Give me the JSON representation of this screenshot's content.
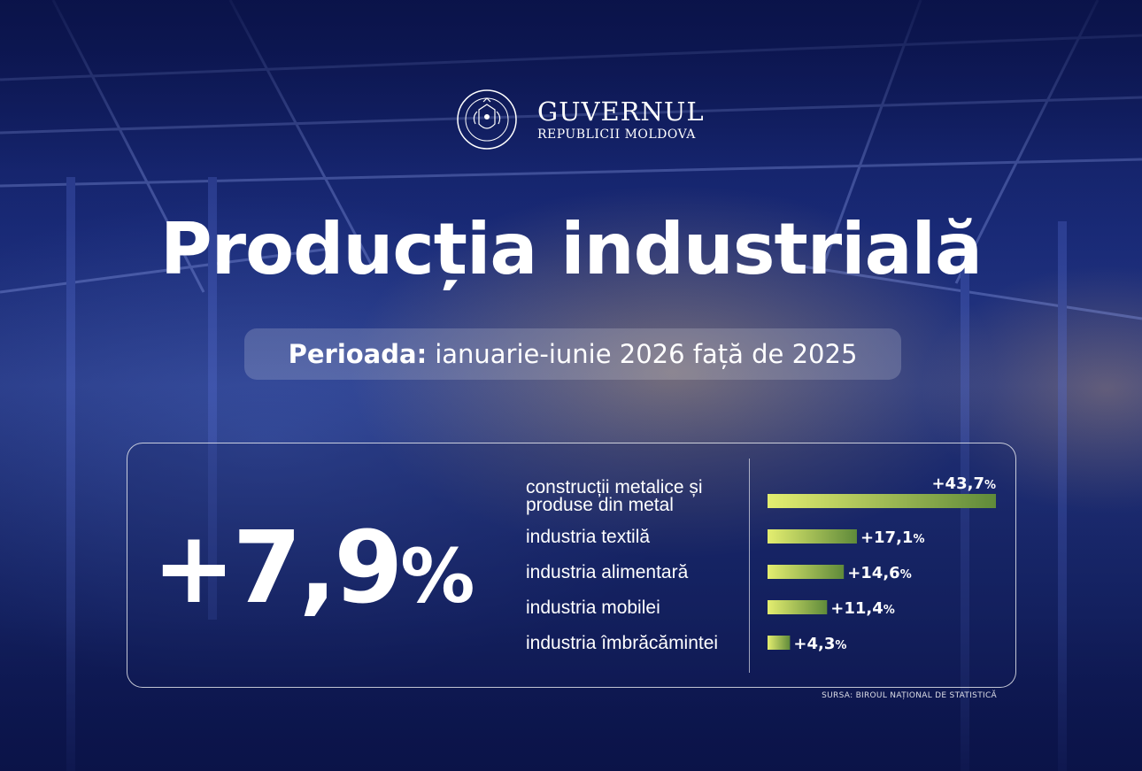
{
  "logo": {
    "line1": "GUVERNUL",
    "line2": "REPUBLICII MOLDOVA"
  },
  "title": "Producția industrială",
  "period": {
    "label": "Perioada:",
    "value": "ianuarie-iunie 2026 față de 2025"
  },
  "headline": {
    "value": "+7,9",
    "unit": "%"
  },
  "source": "SURSA: BIROUL NAȚIONAL DE STATISTICĂ",
  "colors": {
    "bar_start": "#e4ee70",
    "bar_end": "#5f8a3a",
    "background": "#1b2d7d"
  },
  "chart_data": {
    "type": "bar",
    "orientation": "horizontal",
    "categories": [
      [
        "construcții metalice și",
        "produse din metal"
      ],
      [
        "industria textilă"
      ],
      [
        "industria alimentară"
      ],
      [
        "industria mobilei"
      ],
      [
        "industria îmbrăcămintei"
      ]
    ],
    "values": [
      43.7,
      17.1,
      14.6,
      11.4,
      4.3
    ],
    "value_labels": [
      "+43,7",
      "+17,1",
      "+14,6",
      "+11,4",
      "+4,3"
    ],
    "unit": "%",
    "xlim": [
      0,
      43.7
    ]
  }
}
